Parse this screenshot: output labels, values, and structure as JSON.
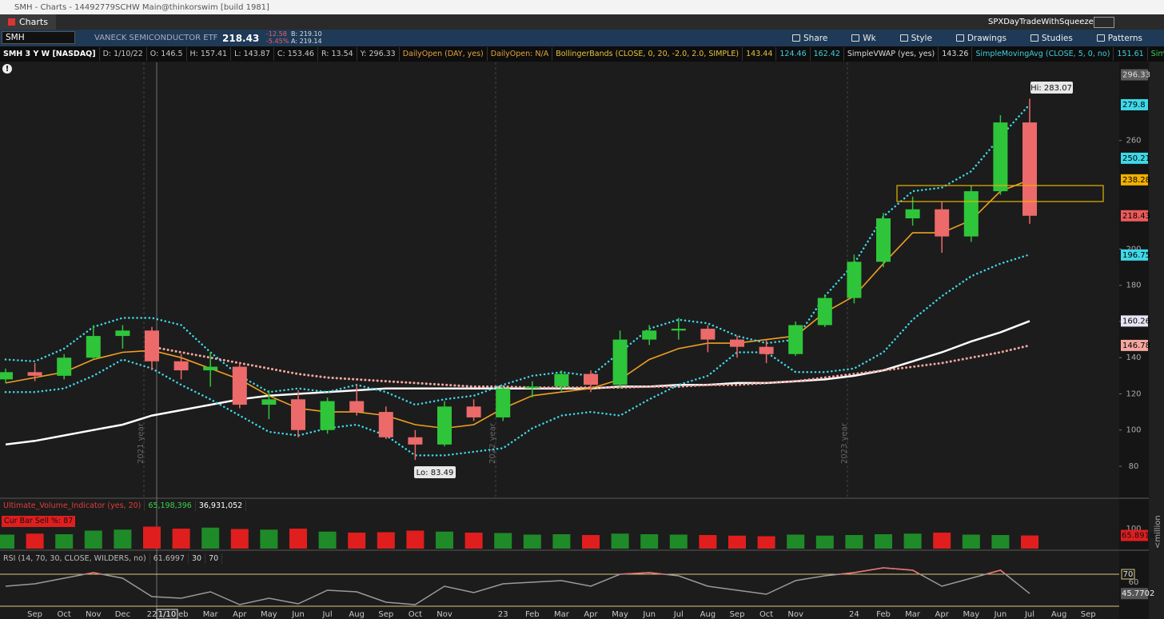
{
  "window": {
    "title": "SMH - Charts - 14492779SCHW Main@thinkorswim [build 1981]",
    "tab": "Charts",
    "layout": "SPXDayTradeWithSqueeze"
  },
  "toolbar": {
    "symbol": "SMH",
    "description": "VANECK SEMICONDUCTOR ETF",
    "last": "218.43",
    "change": "-12.58",
    "change_pct": "-5.45%",
    "bid": "B: 219.10",
    "ask": "A: 219.14",
    "buttons": [
      "Share",
      "Wk",
      "Style",
      "Drawings",
      "Studies",
      "Patterns"
    ]
  },
  "study_bar": [
    {
      "text": "SMH 3 Y W [NASDAQ]",
      "color": "#ffffff"
    },
    {
      "text": "D: 1/10/22",
      "color": "#c8c8c8"
    },
    {
      "text": "O: 146.5",
      "color": "#c8c8c8"
    },
    {
      "text": "H: 157.41",
      "color": "#c8c8c8"
    },
    {
      "text": "L: 143.87",
      "color": "#c8c8c8"
    },
    {
      "text": "C: 153.46",
      "color": "#c8c8c8"
    },
    {
      "text": "R: 13.54",
      "color": "#c8c8c8"
    },
    {
      "text": "Y: 296.33",
      "color": "#c8c8c8"
    },
    {
      "text": "DailyOpen (DAY, yes)",
      "color": "#e8a33c"
    },
    {
      "text": "DailyOpen: N/A",
      "color": "#e8a33c"
    },
    {
      "text": "BollingerBands (CLOSE, 0, 20, -2.0, 2.0, SIMPLE)",
      "color": "#e8c23c"
    },
    {
      "text": "143.44",
      "color": "#e8c23c"
    },
    {
      "text": "124.46",
      "color": "#40d0e0"
    },
    {
      "text": "162.42",
      "color": "#40d0e0"
    },
    {
      "text": "SimpleVWAP (yes, yes)",
      "color": "#dddddd"
    },
    {
      "text": "143.26",
      "color": "#dddddd"
    },
    {
      "text": "SimpleMovingAvg (CLOSE, 5, 0, no)",
      "color": "#40d0e0"
    },
    {
      "text": "151.61",
      "color": "#40d0e0"
    },
    {
      "text": "SimpleMovingAvg ...",
      "color": "#3cd050"
    }
  ],
  "cursor_date": "1/10",
  "year_labels": [
    "2021 year",
    "2022 year",
    "2023 year"
  ],
  "hi_label": "Hi: 283.07",
  "lo_label": "Lo: 83.49",
  "chart_data": [
    {
      "type": "candlestick",
      "categories": [
        null,
        "Sep",
        "Oct",
        "Nov",
        "Dec",
        "22",
        "Feb",
        "Mar",
        "Apr",
        "May",
        "Jun",
        "Jul",
        "Aug",
        "Sep",
        "Oct",
        "Nov",
        null,
        "23",
        "Feb",
        "Mar",
        "Apr",
        "May",
        "Jun",
        "Jul",
        "Aug",
        "Sep",
        "Oct",
        "Nov",
        null,
        "24",
        "Feb",
        "Mar",
        "Apr",
        "May",
        "Jun",
        "Jul",
        "Aug",
        "Sep"
      ],
      "open": [
        128,
        132,
        130,
        140,
        152,
        155,
        138,
        133,
        135,
        114,
        117,
        100,
        116,
        110,
        96,
        92,
        113,
        107,
        123,
        124,
        131,
        125,
        150,
        155,
        156,
        150,
        146,
        142,
        158,
        173,
        193,
        217,
        222,
        207,
        232,
        270,
        null,
        null
      ],
      "high": [
        134,
        137,
        142,
        158,
        158,
        157,
        142,
        143,
        137,
        122,
        122,
        118,
        125,
        113,
        100,
        116,
        117,
        124,
        127,
        133,
        133,
        155,
        158,
        162,
        158,
        152,
        150,
        160,
        175,
        197,
        220,
        229,
        226,
        235,
        274,
        283.07,
        null,
        null
      ],
      "low": [
        126,
        127,
        128,
        139,
        145,
        133,
        128,
        124,
        112,
        106,
        96,
        98,
        108,
        95,
        83.49,
        91,
        105,
        105,
        118,
        121,
        121,
        123,
        147,
        150,
        143,
        140,
        137,
        141,
        157,
        170,
        190,
        213,
        198,
        204,
        230,
        214,
        null,
        null
      ],
      "close": [
        132,
        130,
        140,
        152,
        155,
        138,
        133,
        135,
        114,
        117,
        100,
        116,
        110,
        96,
        92,
        113,
        107,
        123,
        124,
        131,
        125,
        150,
        155,
        156,
        150,
        146,
        142,
        158,
        173,
        193,
        217,
        222,
        207,
        232,
        270,
        218.43,
        null,
        null
      ],
      "up_color": "#2fc53a",
      "down_color": "#ec6a6a",
      "overlays": [
        {
          "color": "#ffffff",
          "width": 2.5,
          "dotted": false,
          "values": [
            92,
            94,
            97,
            100,
            103,
            108,
            111,
            114,
            117,
            119,
            120,
            121,
            122,
            123,
            123,
            123,
            123,
            123,
            123,
            123,
            123,
            124,
            124,
            125,
            125,
            126,
            126,
            127,
            128,
            130,
            133,
            138,
            143,
            149,
            154,
            160.26,
            null,
            null
          ]
        },
        {
          "color": "#f4a6a0",
          "width": 3,
          "dotted": true,
          "values": [
            null,
            null,
            null,
            null,
            null,
            146,
            143,
            140,
            137,
            134,
            131,
            129,
            128,
            127,
            126,
            125,
            124,
            124,
            123.5,
            123.5,
            123.5,
            123.5,
            124,
            124,
            125,
            125,
            126,
            127,
            129,
            131,
            133,
            135,
            137,
            140,
            143,
            146.78,
            null,
            null
          ]
        },
        {
          "color": "#f0a020",
          "width": 1.6,
          "dotted": false,
          "values": [
            126,
            129,
            132,
            139,
            143,
            144,
            140,
            134,
            128,
            119,
            112,
            110,
            110,
            108,
            103,
            101,
            103,
            112,
            119,
            121,
            123,
            128,
            139,
            145,
            148,
            148,
            150,
            152,
            165,
            174,
            192,
            209,
            209,
            216,
            232,
            238.28,
            null,
            null
          ]
        },
        {
          "color": "#3fd8e8",
          "width": 2.5,
          "dotted": true,
          "values": [
            139,
            138,
            145,
            157,
            162,
            162,
            158,
            143,
            130,
            121,
            123,
            121,
            125,
            121,
            114,
            117,
            119,
            125,
            130,
            132,
            130,
            143,
            156,
            161,
            159,
            152,
            148,
            150,
            174,
            192,
            218,
            232,
            234,
            243,
            262,
            280,
            null,
            null
          ]
        },
        {
          "color": "#3fd8e8",
          "width": 2.5,
          "dotted": true,
          "values": [
            121,
            121,
            123,
            130,
            139,
            134,
            125,
            117,
            108,
            99,
            97,
            101,
            103,
            97,
            86,
            86,
            88,
            90,
            101,
            108,
            110,
            108,
            117,
            125,
            130,
            143,
            143,
            132,
            132,
            134,
            143,
            161,
            174,
            185,
            192,
            197,
            null,
            null
          ]
        }
      ],
      "ylim": [
        62.76,
        303.2
      ],
      "yticks": [
        80,
        100,
        120,
        140,
        160,
        180,
        200,
        260
      ],
      "badges": [
        {
          "value": 296.33,
          "color": "#5c5c5c",
          "text_color": "#dddddd"
        },
        {
          "value": 279.8,
          "color": "#3fd8e8",
          "text_color": "#000000"
        },
        {
          "value": 250.21,
          "color": "#3fd8e8",
          "text_color": "#000000"
        },
        {
          "value": 238.28,
          "color": "#f0b000",
          "text_color": "#000000"
        },
        {
          "value": 218.43,
          "color": "#ec5a5a",
          "text_color": "#000000"
        },
        {
          "value": 196.75,
          "color": "#3fd8e8",
          "text_color": "#000000"
        },
        {
          "value": 160.26,
          "color": "#e8e4f4",
          "text_color": "#000000"
        },
        {
          "value": 146.78,
          "color": "#f4a6a0",
          "text_color": "#000000"
        }
      ]
    },
    {
      "type": "bar",
      "header": [
        {
          "text": "Ultimate_Volume_Indicator (yes, 20)",
          "color": "#e03c3c"
        },
        {
          "text": "65,198,396",
          "color": "#3cd050"
        },
        {
          "text": "36,931,052",
          "color": "#ffffff"
        }
      ],
      "alert": "Cur Bar Sell %: 87",
      "unit_label": "<million",
      "values": [
        70,
        75,
        72,
        90,
        95,
        110,
        100,
        105,
        98,
        95,
        100,
        85,
        80,
        82,
        90,
        85,
        80,
        78,
        70,
        72,
        68,
        75,
        72,
        70,
        68,
        65,
        62,
        70,
        65,
        68,
        72,
        75,
        80,
        70,
        68,
        65.8918,
        null,
        null
      ],
      "up_color": "#1f8a28",
      "down_color": "#e01e1e",
      "badge_color": "#e01e1e",
      "ylim": [
        0,
        184
      ],
      "yticks": [
        100
      ]
    },
    {
      "type": "line",
      "header": [
        {
          "text": "RSI (14, 70, 30, CLOSE, WILDERS, no)",
          "color": "#bbbbbb"
        },
        {
          "text": "61.6997",
          "color": "#bbbbbb"
        }
      ],
      "overbought": 70,
      "oversold": 30,
      "values": [
        55,
        58,
        65,
        72,
        65,
        42,
        40,
        48,
        32,
        40,
        33,
        50,
        48,
        35,
        32,
        55,
        47,
        58,
        60,
        62,
        55,
        70,
        72,
        68,
        55,
        50,
        45,
        62,
        68,
        72,
        78,
        75,
        55,
        65,
        75,
        45.7702,
        null,
        null
      ],
      "color": "#9a9a9a",
      "overbought_color": "#f07070",
      "ylim": [
        26,
        93
      ],
      "yticks": [
        60
      ]
    }
  ]
}
